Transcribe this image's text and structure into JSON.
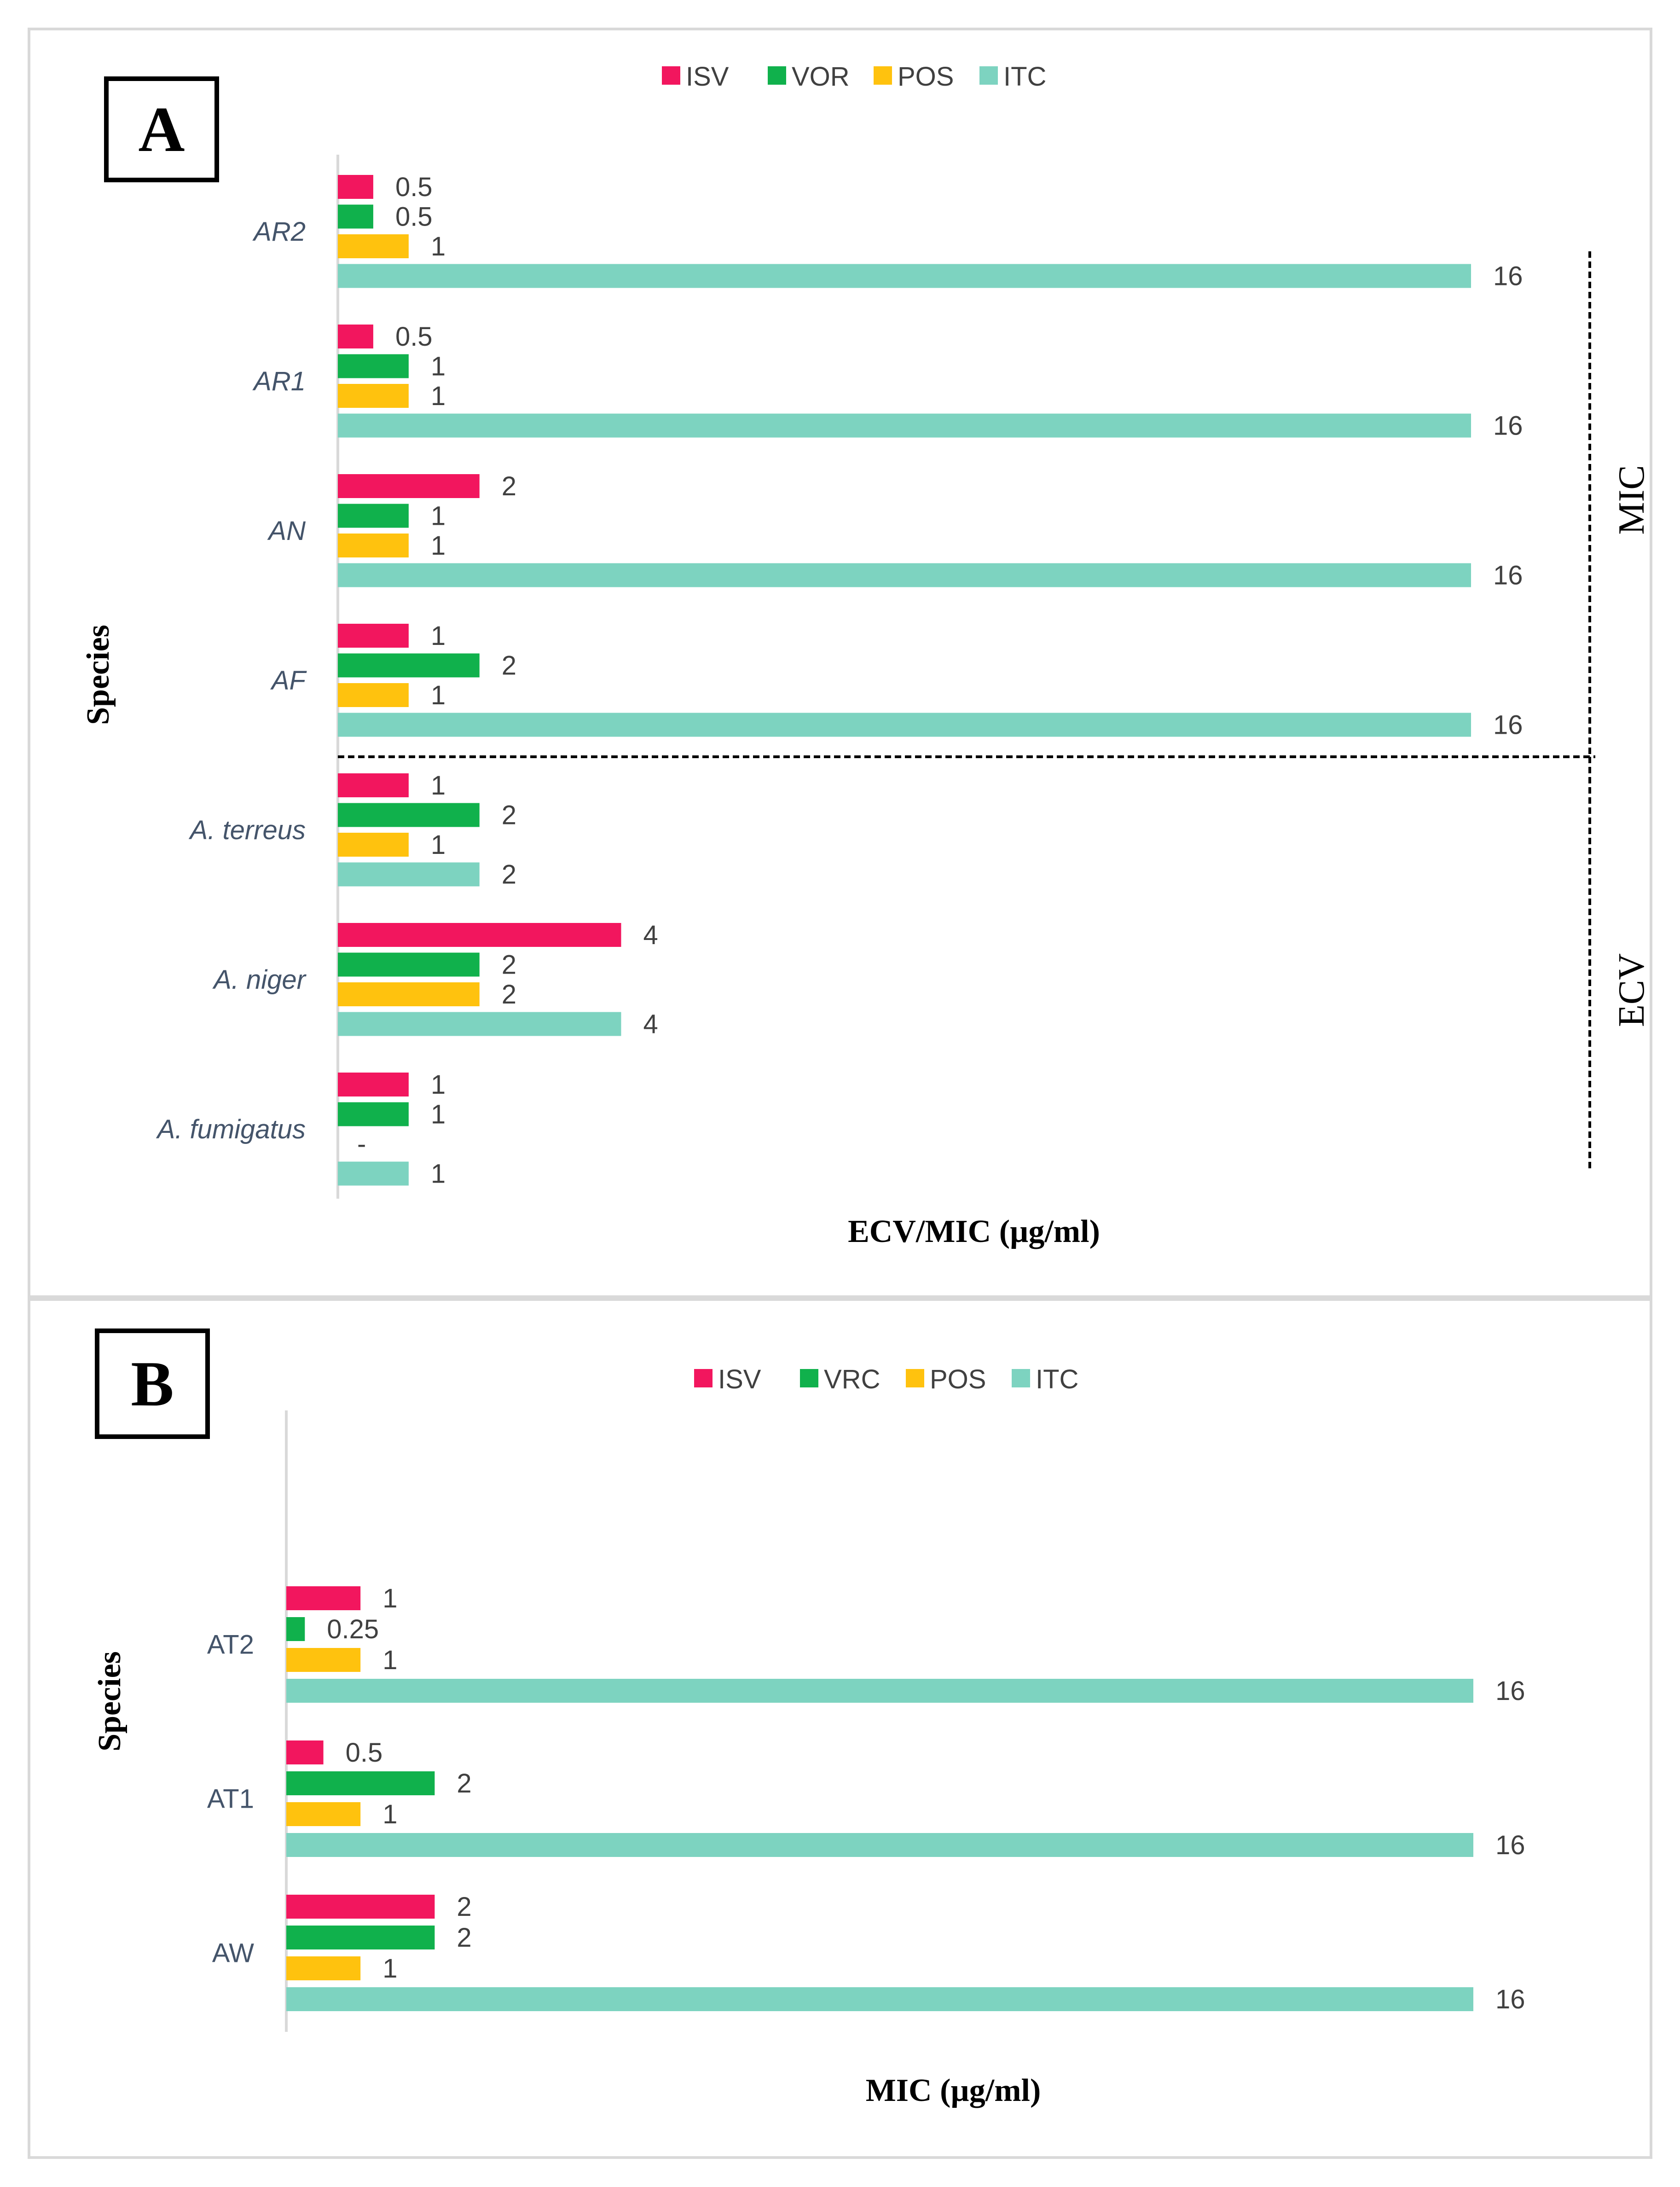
{
  "colors": {
    "ISV": "#f2165e",
    "VOR": "#10b14c",
    "VRC": "#10b14c",
    "POS": "#ffc20e",
    "ITC": "#7dd3c0"
  },
  "chart_data": [
    {
      "type": "bar",
      "orientation": "horizontal",
      "panel_label": "A",
      "xlabel": "ECV/MIC (µg/ml)",
      "ylabel": "Species",
      "xlim": [
        0,
        16
      ],
      "categories": [
        "AR2",
        "AR1",
        "AN",
        "AF",
        "A. terreus",
        "A. niger",
        "A. fumigatus"
      ],
      "series": [
        {
          "name": "ISV",
          "values": [
            0.5,
            0.5,
            2,
            1,
            1,
            4,
            1
          ],
          "labels": [
            "0.5",
            "0.5",
            "2",
            "1",
            "1",
            "4",
            "1"
          ]
        },
        {
          "name": "VOR",
          "values": [
            0.5,
            1,
            1,
            2,
            2,
            2,
            1
          ],
          "labels": [
            "0.5",
            "1",
            "1",
            "2",
            "2",
            "2",
            "1"
          ]
        },
        {
          "name": "POS",
          "values": [
            1,
            1,
            1,
            1,
            1,
            2,
            null
          ],
          "labels": [
            "1",
            "1",
            "1",
            "1",
            "1",
            "2",
            "-"
          ]
        },
        {
          "name": "ITC",
          "values": [
            16,
            16,
            16,
            16,
            2,
            4,
            1
          ],
          "labels": [
            "16",
            "16",
            "16",
            "16",
            "2",
            "4",
            "1"
          ]
        }
      ],
      "groups": [
        {
          "name": "MIC",
          "categories": [
            "AR2",
            "AR1",
            "AN",
            "AF"
          ]
        },
        {
          "name": "ECV",
          "categories": [
            "A. terreus",
            "A. niger",
            "A. fumigatus"
          ]
        }
      ],
      "legend_position": "top-center"
    },
    {
      "type": "bar",
      "orientation": "horizontal",
      "panel_label": "B",
      "xlabel": "MIC (µg/ml)",
      "ylabel": "Species",
      "xlim": [
        0,
        16
      ],
      "categories": [
        "AT2",
        "AT1",
        "AW"
      ],
      "series": [
        {
          "name": "ISV",
          "values": [
            1,
            0.5,
            2
          ],
          "labels": [
            "1",
            "0.5",
            "2"
          ]
        },
        {
          "name": "VRC",
          "values": [
            0.25,
            2,
            2
          ],
          "labels": [
            "0.25",
            "2",
            "2"
          ]
        },
        {
          "name": "POS",
          "values": [
            1,
            1,
            1
          ],
          "labels": [
            "1",
            "1",
            "1"
          ]
        },
        {
          "name": "ITC",
          "values": [
            16,
            16,
            16
          ],
          "labels": [
            "16",
            "16",
            "16"
          ]
        }
      ],
      "legend_position": "top-center"
    }
  ]
}
